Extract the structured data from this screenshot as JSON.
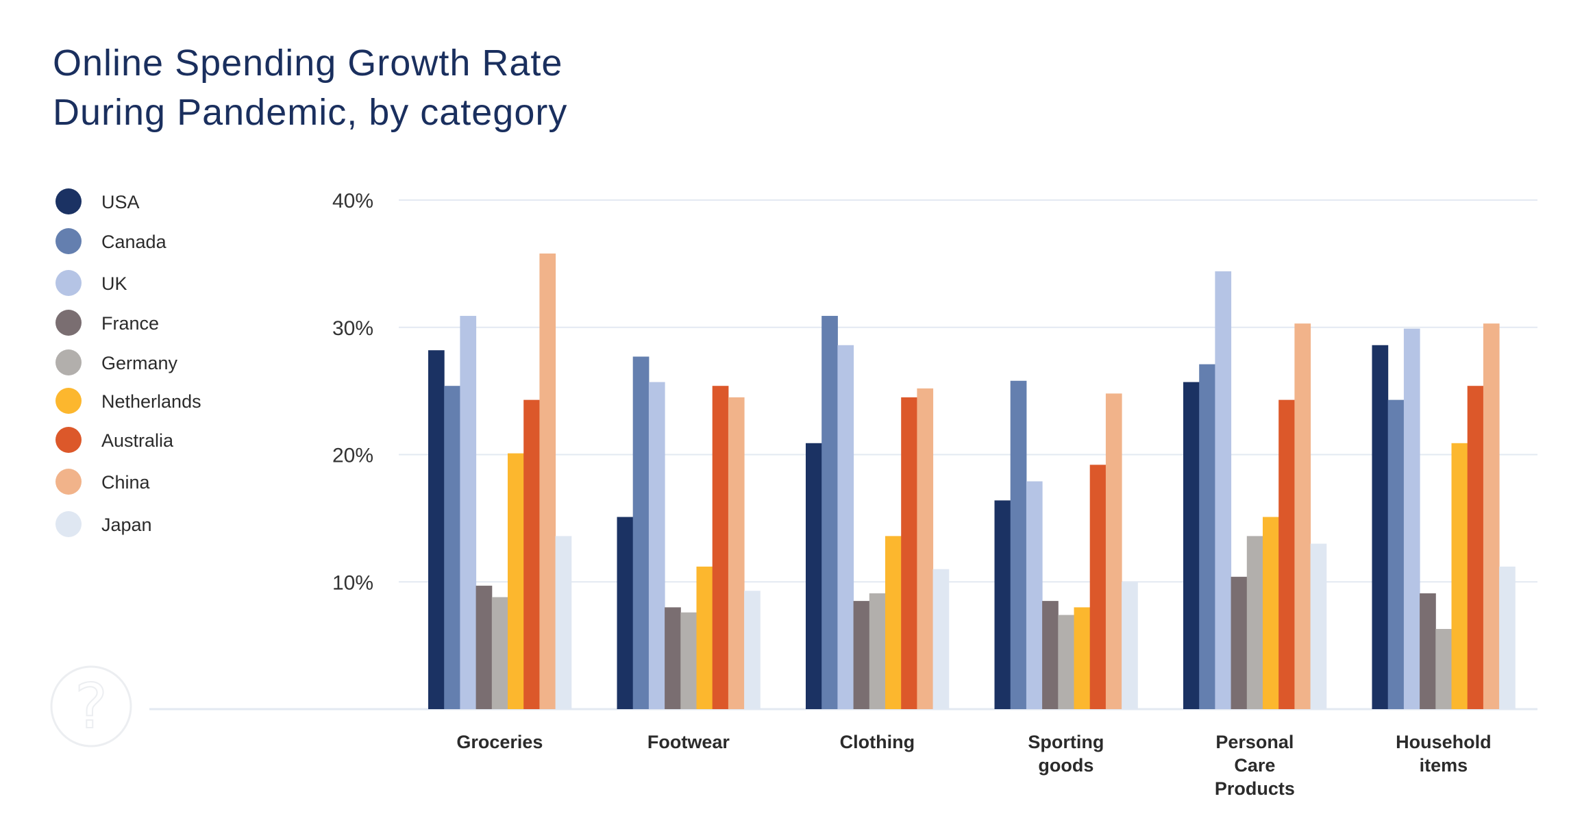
{
  "chart_data": {
    "type": "bar",
    "title": [
      "Online Spending Growth Rate",
      "During Pandemic, by category"
    ],
    "categories": [
      [
        "Groceries"
      ],
      [
        "Footwear"
      ],
      [
        "Clothing"
      ],
      [
        "Sporting",
        "goods"
      ],
      [
        "Personal",
        "Care",
        "Products"
      ],
      [
        "Household",
        "items"
      ]
    ],
    "ylim": [
      0,
      40
    ],
    "yticks": [
      10,
      20,
      30,
      40
    ],
    "ytick_labels": [
      "10%",
      "20%",
      "30%",
      "40%"
    ],
    "grid": true,
    "legend_placement": "left",
    "series": [
      {
        "name": "USA",
        "color": "#1b3263",
        "values": [
          28.2,
          15.1,
          20.9,
          16.4,
          25.7,
          28.6
        ]
      },
      {
        "name": "Canada",
        "color": "#647faf",
        "values": [
          25.4,
          27.7,
          30.9,
          25.8,
          27.1,
          24.3
        ]
      },
      {
        "name": "UK",
        "color": "#b5c4e5",
        "values": [
          30.9,
          25.7,
          28.6,
          17.9,
          34.4,
          29.9
        ]
      },
      {
        "name": "France",
        "color": "#7a6e71",
        "values": [
          9.7,
          8.0,
          8.5,
          8.5,
          10.4,
          9.1
        ]
      },
      {
        "name": "Germany",
        "color": "#b2afac",
        "values": [
          8.8,
          7.6,
          9.1,
          7.4,
          13.6,
          6.3
        ]
      },
      {
        "name": "Netherlands",
        "color": "#fcb72e",
        "values": [
          20.1,
          11.2,
          13.6,
          8.0,
          15.1,
          20.9
        ]
      },
      {
        "name": "Australia",
        "color": "#dc582a",
        "values": [
          24.3,
          25.4,
          24.5,
          19.2,
          24.3,
          25.4
        ]
      },
      {
        "name": "China",
        "color": "#f1b38a",
        "values": [
          35.8,
          24.5,
          25.2,
          24.8,
          30.3,
          30.3
        ]
      },
      {
        "name": "Japan",
        "color": "#dfe7f2",
        "values": [
          13.6,
          9.3,
          11.0,
          10.0,
          13.0,
          11.2
        ]
      }
    ]
  },
  "colors": {
    "title": "#1a2f5e",
    "grid": "#e3e9f2"
  },
  "icons": {
    "help": "question-mark-circle-icon"
  }
}
